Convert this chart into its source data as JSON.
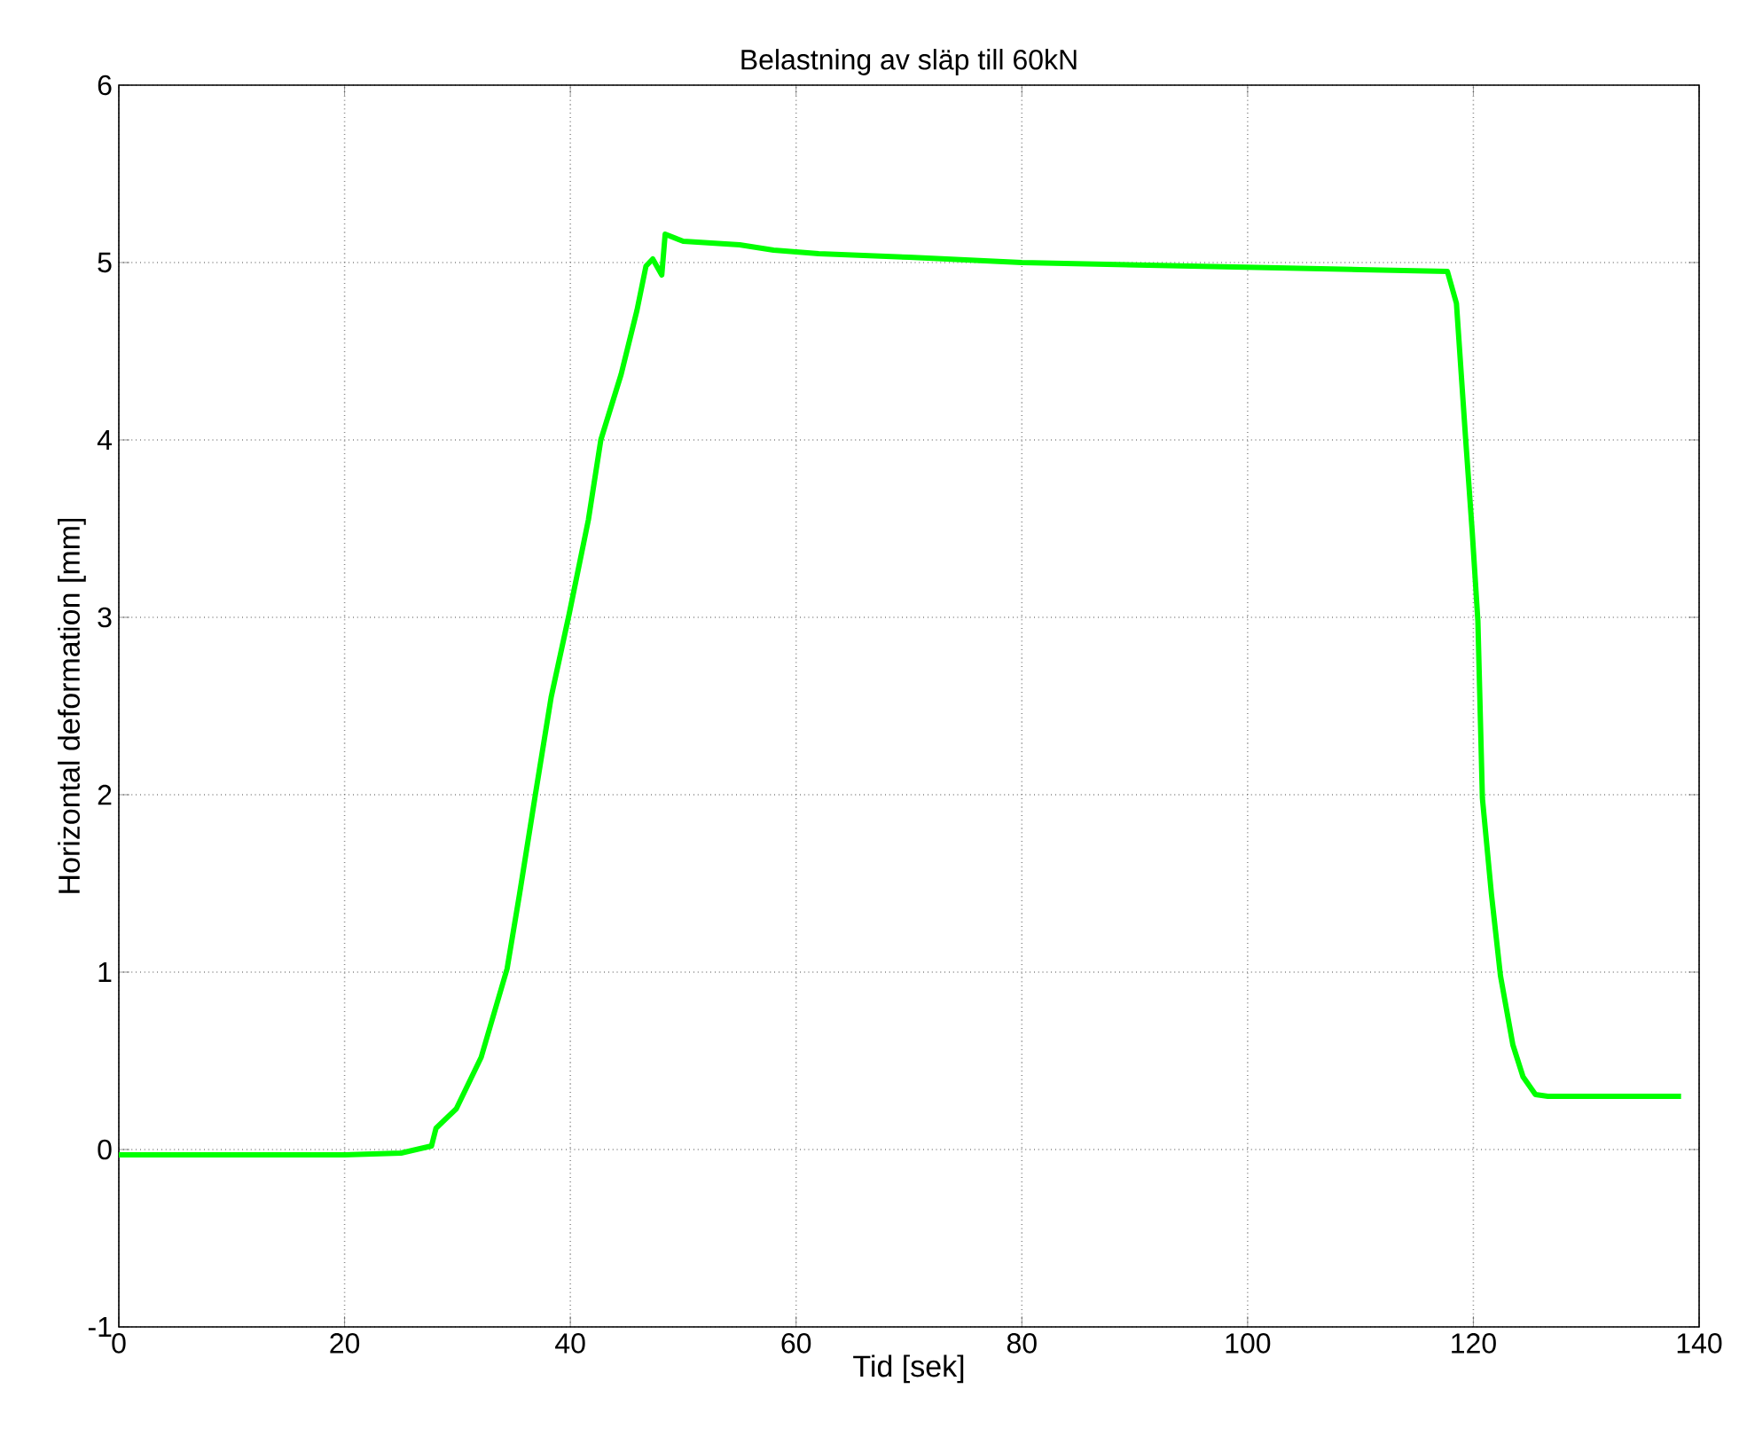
{
  "chart_data": {
    "type": "line",
    "title": "Belastning av släp till 60kN",
    "xlabel": "Tid [sek]",
    "ylabel": "Horizontal deformation [mm]",
    "xlim": [
      0,
      140
    ],
    "ylim": [
      -1,
      6
    ],
    "xticks": [
      0,
      20,
      40,
      60,
      80,
      100,
      120,
      140
    ],
    "yticks": [
      -1,
      0,
      1,
      2,
      3,
      4,
      5,
      6
    ],
    "grid": true,
    "line_style": "solid",
    "marker": "none",
    "series": [
      {
        "color": "#00ff00",
        "x": [
          0,
          10,
          20,
          25,
          27.7,
          28.1,
          29.9,
          32.1,
          34.4,
          35.5,
          36.9,
          38.3,
          39.9,
          41.6,
          42.7,
          44.5,
          45.9,
          46.7,
          47.3,
          48.1,
          48.4,
          50,
          55,
          58,
          62,
          70,
          80,
          95,
          110,
          117.7,
          118.5,
          119.3,
          119.9,
          120.4,
          120.8,
          121.6,
          122.4,
          123.5,
          124.4,
          125.5,
          126.6,
          130,
          138.4
        ],
        "values": [
          -0.03,
          -0.03,
          -0.03,
          -0.02,
          0.02,
          0.12,
          0.23,
          0.52,
          1.02,
          1.44,
          2.0,
          2.55,
          3.02,
          3.55,
          4.0,
          4.37,
          4.73,
          4.98,
          5.02,
          4.93,
          5.16,
          5.12,
          5.1,
          5.07,
          5.05,
          5.03,
          5.0,
          4.98,
          4.96,
          4.95,
          4.77,
          4.02,
          3.48,
          2.98,
          1.98,
          1.44,
          0.98,
          0.59,
          0.41,
          0.31,
          0.3,
          0.3,
          0.3
        ]
      }
    ]
  }
}
